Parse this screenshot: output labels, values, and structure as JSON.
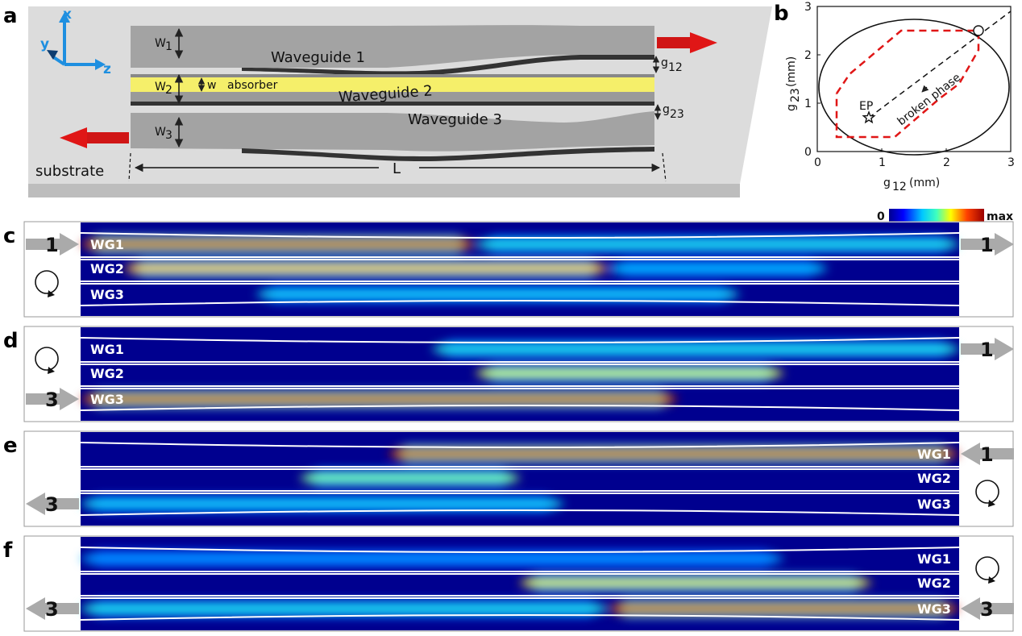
{
  "panel_labels": {
    "a": "a",
    "b": "b",
    "c": "c",
    "d": "d",
    "e": "e",
    "f": "f"
  },
  "schematic": {
    "wg1": "Waveguide 1",
    "wg2": "Waveguide 2",
    "wg3": "Waveguide 3",
    "absorber": "absorber",
    "substrate": "substrate",
    "L": "L",
    "w1": "W",
    "w1_sub": "1",
    "w2": "W",
    "w2_sub": "2",
    "w3": "W",
    "w3_sub": "3",
    "w": "w",
    "g12": "g",
    "g12_sub": "12",
    "g23": "g",
    "g23_sub": "23",
    "axis_x": "x",
    "axis_y": "y",
    "axis_z": "z",
    "colors": {
      "waveguide": "#9a9a9a",
      "absorber": "#f5ef6a",
      "substrate": "#d9d9d9",
      "arrow": "#e01616"
    }
  },
  "chart_data": {
    "type": "scatter",
    "xlabel": "g",
    "xlabel_sub": "12",
    "xlabel_unit": "(mm)",
    "ylabel": "g",
    "ylabel_sub": "23",
    "ylabel_unit": "(mm)",
    "xlim": [
      0,
      3
    ],
    "ylim": [
      0,
      3
    ],
    "xticks": [
      "0",
      "1",
      "2",
      "3"
    ],
    "yticks": [
      "0",
      "1",
      "2",
      "3"
    ],
    "ep": {
      "label": "EP",
      "x": 0.8,
      "y": 0.7
    },
    "broken_phase_label": "broken phase",
    "exceptional_line": [
      [
        0.8,
        0.7
      ],
      [
        3,
        2.9
      ]
    ],
    "endpoint": {
      "x": 2.5,
      "y": 2.5
    },
    "path": [
      [
        0.3,
        1.2
      ],
      [
        0.5,
        1.6
      ],
      [
        1.3,
        2.5
      ],
      [
        2.5,
        2.5
      ],
      [
        2.5,
        2.1
      ],
      [
        2.2,
        1.4
      ],
      [
        1.9,
        1.1
      ],
      [
        1.2,
        0.3
      ],
      [
        0.3,
        0.3
      ]
    ],
    "colors": {
      "path": "#e01616",
      "boundary": "#000000"
    }
  },
  "colorbar": {
    "min": "0",
    "max": "max"
  },
  "field_panels": [
    {
      "id": "c",
      "in_port": "1",
      "out_port": "1",
      "direction": "forward",
      "labels": [
        "WG1",
        "WG2",
        "WG3"
      ]
    },
    {
      "id": "d",
      "in_port": "3",
      "out_port": "1",
      "direction": "forward",
      "labels": [
        "WG1",
        "WG2",
        "WG3"
      ]
    },
    {
      "id": "e",
      "in_port": "1",
      "out_port": "3",
      "direction": "backward",
      "labels": [
        "WG1",
        "WG2",
        "WG3"
      ]
    },
    {
      "id": "f",
      "in_port": "3",
      "out_port": "3",
      "direction": "backward",
      "labels": [
        "WG1",
        "WG2",
        "WG3"
      ]
    }
  ]
}
